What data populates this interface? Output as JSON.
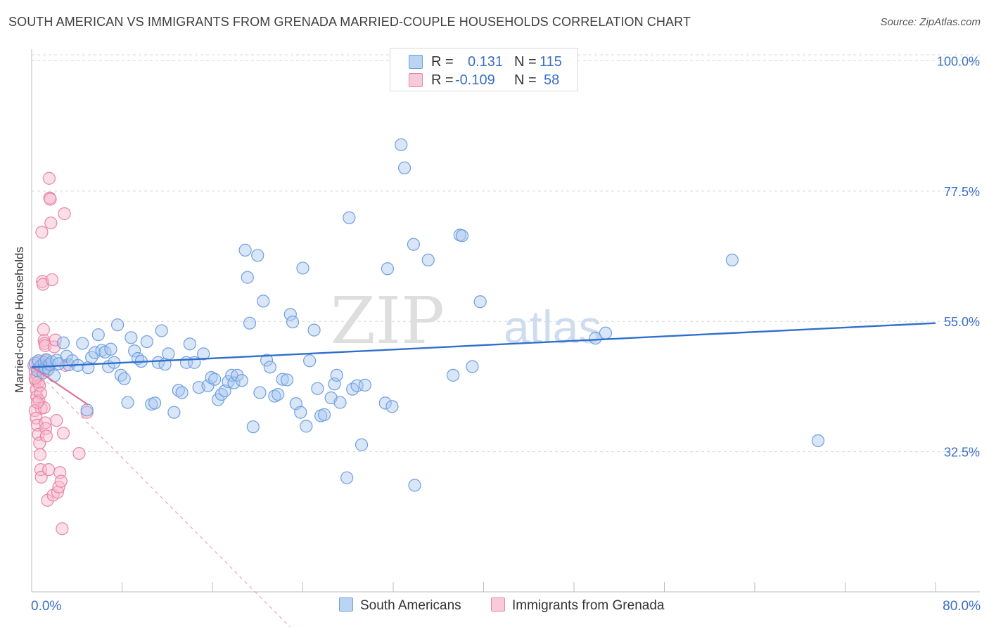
{
  "title": "SOUTH AMERICAN VS IMMIGRANTS FROM GRENADA MARRIED-COUPLE HOUSEHOLDS CORRELATION CHART",
  "source": "Source: ZipAtlas.com",
  "watermark": {
    "zip": "ZIP",
    "atlas": "atlas"
  },
  "legend": {
    "rows": [
      {
        "r_label": "R =",
        "r_value": "0.131",
        "n_label": "N =",
        "n_value": "115"
      },
      {
        "r_label": "R =",
        "r_value": "-0.109",
        "n_label": "N =",
        "n_value": "58"
      }
    ]
  },
  "bottom_legend": {
    "series1": "South Americans",
    "series2": "Immigrants from Grenada"
  },
  "colors": {
    "blue_fill": "#a9c8f0",
    "blue_stroke": "#6f9fe0",
    "blue_line": "#2f6fcc",
    "pink_fill": "#f6b8cc",
    "pink_stroke": "#e885a6",
    "pink_line": "#e0709a",
    "axis_label": "#3a6fc4",
    "grid": "#d8d8d8"
  },
  "chart_data": {
    "type": "scatter",
    "title": "SOUTH AMERICAN VS IMMIGRANTS FROM GRENADA MARRIED-COUPLE HOUSEHOLDS CORRELATION CHART",
    "xlabel": "",
    "ylabel": "Married-couple Households",
    "xlim": [
      0,
      80
    ],
    "ylim": [
      10,
      102
    ],
    "x_tick_labels": [
      "0.0%",
      "80.0%"
    ],
    "y_ticks": [
      32.5,
      55.0,
      77.5,
      100.0
    ],
    "y_tick_labels": [
      "32.5%",
      "55.0%",
      "77.5%",
      "100.0%"
    ],
    "grid": true,
    "legend_position": "top-center",
    "series": [
      {
        "name": "South Americans",
        "R": 0.131,
        "N": 115,
        "trend": {
          "x": [
            0,
            80
          ],
          "y": [
            47.1,
            54.7
          ]
        },
        "points": [
          [
            0.3,
            47.8
          ],
          [
            0.5,
            46.5
          ],
          [
            0.6,
            48.2
          ],
          [
            0.8,
            47.3
          ],
          [
            1.0,
            46.1
          ],
          [
            1.1,
            47.9
          ],
          [
            1.2,
            47.0
          ],
          [
            1.3,
            48.4
          ],
          [
            1.5,
            46.8
          ],
          [
            1.6,
            47.6
          ],
          [
            1.8,
            48.0
          ],
          [
            2.0,
            45.6
          ],
          [
            2.2,
            48.3
          ],
          [
            2.4,
            47.7
          ],
          [
            2.8,
            51.3
          ],
          [
            3.1,
            49.0
          ],
          [
            3.3,
            47.5
          ],
          [
            3.6,
            48.2
          ],
          [
            4.1,
            47.4
          ],
          [
            4.5,
            51.2
          ],
          [
            5.0,
            47.0
          ],
          [
            5.3,
            48.8
          ],
          [
            5.6,
            49.6
          ],
          [
            5.9,
            52.7
          ],
          [
            6.2,
            50.0
          ],
          [
            6.5,
            49.7
          ],
          [
            6.8,
            47.2
          ],
          [
            7.0,
            50.2
          ],
          [
            7.3,
            47.9
          ],
          [
            7.6,
            54.4
          ],
          [
            7.9,
            45.7
          ],
          [
            8.2,
            45.1
          ],
          [
            8.5,
            41.0
          ],
          [
            8.8,
            52.2
          ],
          [
            9.1,
            49.9
          ],
          [
            9.4,
            48.6
          ],
          [
            9.7,
            48.1
          ],
          [
            10.2,
            51.5
          ],
          [
            10.6,
            40.7
          ],
          [
            10.9,
            40.9
          ],
          [
            11.2,
            47.9
          ],
          [
            11.5,
            53.4
          ],
          [
            11.8,
            47.6
          ],
          [
            12.1,
            49.4
          ],
          [
            12.6,
            39.3
          ],
          [
            13.0,
            43.1
          ],
          [
            13.3,
            42.7
          ],
          [
            13.7,
            47.9
          ],
          [
            14.0,
            51.1
          ],
          [
            14.4,
            47.9
          ],
          [
            14.8,
            43.6
          ],
          [
            15.2,
            49.4
          ],
          [
            15.6,
            43.9
          ],
          [
            15.9,
            45.3
          ],
          [
            16.2,
            45.0
          ],
          [
            16.5,
            41.5
          ],
          [
            16.8,
            42.4
          ],
          [
            17.1,
            43.0
          ],
          [
            17.4,
            44.6
          ],
          [
            17.7,
            45.7
          ],
          [
            17.9,
            44.4
          ],
          [
            18.2,
            45.7
          ],
          [
            18.6,
            44.8
          ],
          [
            18.9,
            67.3
          ],
          [
            19.1,
            62.6
          ],
          [
            19.3,
            54.7
          ],
          [
            19.6,
            36.8
          ],
          [
            20.0,
            66.4
          ],
          [
            20.2,
            42.7
          ],
          [
            20.5,
            58.5
          ],
          [
            20.8,
            48.3
          ],
          [
            21.1,
            47.1
          ],
          [
            21.5,
            42.1
          ],
          [
            21.8,
            42.4
          ],
          [
            22.2,
            45.0
          ],
          [
            22.6,
            44.9
          ],
          [
            22.9,
            56.2
          ],
          [
            23.1,
            54.9
          ],
          [
            23.4,
            40.8
          ],
          [
            23.8,
            39.3
          ],
          [
            24.0,
            64.2
          ],
          [
            24.3,
            36.9
          ],
          [
            24.6,
            48.2
          ],
          [
            25.0,
            53.5
          ],
          [
            25.3,
            43.4
          ],
          [
            25.6,
            38.7
          ],
          [
            25.9,
            38.9
          ],
          [
            26.5,
            41.8
          ],
          [
            26.8,
            44.2
          ],
          [
            27.0,
            45.7
          ],
          [
            27.3,
            41.0
          ],
          [
            27.9,
            28.0
          ],
          [
            28.1,
            72.9
          ],
          [
            28.4,
            43.3
          ],
          [
            28.8,
            43.9
          ],
          [
            29.2,
            33.7
          ],
          [
            29.5,
            44.0
          ],
          [
            31.3,
            40.9
          ],
          [
            31.5,
            64.1
          ],
          [
            31.9,
            40.3
          ],
          [
            32.7,
            85.5
          ],
          [
            33.0,
            81.5
          ],
          [
            33.8,
            68.3
          ],
          [
            33.9,
            26.7
          ],
          [
            35.1,
            65.6
          ],
          [
            37.3,
            45.7
          ],
          [
            37.9,
            69.9
          ],
          [
            38.1,
            69.8
          ],
          [
            39.0,
            47.2
          ],
          [
            39.7,
            58.4
          ],
          [
            49.9,
            52.1
          ],
          [
            50.8,
            53.0
          ],
          [
            62.0,
            65.6
          ],
          [
            69.6,
            34.4
          ],
          [
            4.9,
            39.7
          ]
        ]
      },
      {
        "name": "Immigrants from Grenada",
        "R": -0.109,
        "N": 58,
        "trend": {
          "x": [
            0,
            5
          ],
          "y": [
            47.2,
            40.6
          ]
        },
        "trend_extended": {
          "x": [
            0,
            24
          ],
          "y": [
            47.2,
            0
          ]
        },
        "points": [
          [
            0.2,
            47.4
          ],
          [
            0.3,
            46.3
          ],
          [
            0.35,
            44.8
          ],
          [
            0.4,
            43.2
          ],
          [
            0.45,
            42.0
          ],
          [
            0.5,
            45.6
          ],
          [
            0.55,
            47.9
          ],
          [
            0.6,
            44.5
          ],
          [
            0.65,
            41.3
          ],
          [
            0.7,
            43.9
          ],
          [
            0.75,
            46.8
          ],
          [
            0.8,
            42.6
          ],
          [
            0.85,
            40.0
          ],
          [
            0.3,
            39.6
          ],
          [
            0.4,
            38.3
          ],
          [
            0.5,
            37.1
          ],
          [
            0.6,
            35.5
          ],
          [
            0.7,
            34.0
          ],
          [
            0.75,
            32.0
          ],
          [
            0.8,
            29.4
          ],
          [
            0.85,
            28.1
          ],
          [
            0.9,
            70.4
          ],
          [
            0.95,
            61.9
          ],
          [
            1.0,
            61.4
          ],
          [
            1.05,
            53.6
          ],
          [
            1.1,
            51.7
          ],
          [
            1.15,
            51.2
          ],
          [
            1.2,
            50.8
          ],
          [
            1.25,
            48.2
          ],
          [
            1.3,
            47.5
          ],
          [
            1.35,
            46.5
          ],
          [
            1.1,
            40.1
          ],
          [
            1.2,
            37.5
          ],
          [
            1.25,
            36.5
          ],
          [
            1.3,
            35.2
          ],
          [
            1.4,
            24.1
          ],
          [
            1.5,
            29.4
          ],
          [
            1.55,
            79.7
          ],
          [
            1.6,
            76.3
          ],
          [
            1.65,
            76.1
          ],
          [
            1.7,
            72.0
          ],
          [
            1.8,
            62.2
          ],
          [
            1.9,
            25.0
          ],
          [
            2.0,
            50.6
          ],
          [
            2.1,
            51.8
          ],
          [
            2.2,
            37.9
          ],
          [
            2.3,
            25.5
          ],
          [
            2.4,
            26.4
          ],
          [
            2.5,
            28.9
          ],
          [
            2.6,
            27.4
          ],
          [
            2.7,
            19.2
          ],
          [
            2.8,
            35.7
          ],
          [
            2.9,
            73.6
          ],
          [
            3.0,
            47.4
          ],
          [
            4.2,
            32.2
          ],
          [
            4.9,
            39.3
          ],
          [
            0.3,
            45.2
          ],
          [
            0.5,
            41.0
          ]
        ]
      }
    ]
  }
}
